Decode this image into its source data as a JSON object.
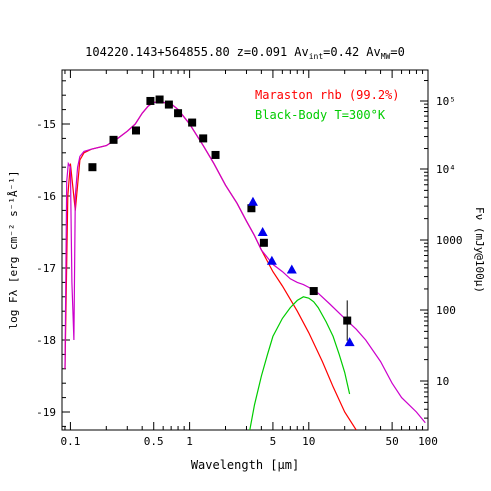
{
  "chart_data": {
    "type": "scatter",
    "title_parts": {
      "object": "104220.143+564855.80",
      "z_label": "z=0.091",
      "av_int_prefix": "Av",
      "av_int_sub": "int",
      "av_int_value": "=0.42",
      "av_mw_prefix": "Av",
      "av_mw_sub": "MW",
      "av_mw_value": "=0"
    },
    "xlabel": "Wavelength [μm]",
    "ylabel_left": "log Fλ [erg cm⁻² s⁻¹Å⁻¹]",
    "ylabel_right": "Fν (mJy@100μ)",
    "x_scale": "log",
    "xlim": [
      0.085,
      100
    ],
    "ylim": [
      -19.25,
      -14.25
    ],
    "x_ticks": [
      "0.1",
      "0.5",
      "1",
      "5",
      "10",
      "50",
      "100"
    ],
    "y_ticks": [
      "-15",
      "-16",
      "-17",
      "-18",
      "-19"
    ],
    "right_ticks": [
      "10⁵",
      "10⁴",
      "1000",
      "100",
      "10"
    ],
    "legend": [
      {
        "name": "Maraston rhb (99.2%)",
        "color": "#ff0000"
      },
      {
        "name": "Black-Body T=300°K",
        "color": "#00cc00"
      }
    ],
    "series": [
      {
        "name": "Maraston rhb (99.2%)",
        "kind": "line",
        "color": "#ff0000",
        "x": [
          0.09,
          0.095,
          0.1,
          0.11,
          0.12,
          0.13,
          0.15,
          0.2,
          0.25,
          0.3,
          0.35,
          0.4,
          0.45,
          0.5,
          0.6,
          0.7,
          0.8,
          1.0,
          1.3,
          1.6,
          2.0,
          2.5,
          3.0,
          3.5,
          4.0,
          5.0,
          6.0,
          8.0,
          10.0,
          13.0,
          16.0,
          20.0,
          25.0
        ],
        "y": [
          -18.4,
          -16.0,
          -15.55,
          -16.2,
          -15.5,
          -15.4,
          -15.35,
          -15.3,
          -15.2,
          -15.1,
          -15.0,
          -14.85,
          -14.75,
          -14.7,
          -14.7,
          -14.72,
          -14.8,
          -15.0,
          -15.3,
          -15.55,
          -15.85,
          -16.1,
          -16.35,
          -16.55,
          -16.75,
          -17.05,
          -17.25,
          -17.6,
          -17.9,
          -18.3,
          -18.65,
          -19.0,
          -19.25
        ]
      },
      {
        "name": "Black-Body T=300°K",
        "kind": "line",
        "color": "#00cc00",
        "x": [
          3.2,
          3.5,
          4.0,
          4.5,
          5.0,
          6.0,
          7.0,
          8.0,
          9.0,
          10.0,
          11.0,
          12.0,
          14.0,
          16.0,
          18.0,
          20.0,
          22.0
        ],
        "y": [
          -19.25,
          -18.9,
          -18.5,
          -18.2,
          -17.95,
          -17.7,
          -17.55,
          -17.45,
          -17.4,
          -17.42,
          -17.47,
          -17.55,
          -17.75,
          -17.95,
          -18.2,
          -18.45,
          -18.75
        ]
      },
      {
        "name": "total model",
        "kind": "line",
        "color": "#cc00cc",
        "x": [
          0.09,
          0.093,
          0.096,
          0.1,
          0.103,
          0.107,
          0.11,
          0.115,
          0.12,
          0.13,
          0.15,
          0.2,
          0.25,
          0.3,
          0.35,
          0.4,
          0.45,
          0.5,
          0.6,
          0.7,
          0.8,
          1.0,
          1.3,
          1.6,
          2.0,
          2.5,
          3.0,
          3.5,
          4.0,
          5.0,
          6.0,
          7.0,
          8.0,
          9.0,
          10.0,
          12.0,
          15.0,
          20.0,
          25.0,
          30.0,
          40.0,
          50.0,
          60.0,
          80.0,
          95.0
        ],
        "y": [
          -18.4,
          -15.8,
          -15.55,
          -15.6,
          -17.2,
          -18.0,
          -16.0,
          -15.6,
          -15.45,
          -15.38,
          -15.35,
          -15.3,
          -15.2,
          -15.1,
          -15.0,
          -14.85,
          -14.75,
          -14.7,
          -14.7,
          -14.72,
          -14.8,
          -15.0,
          -15.3,
          -15.55,
          -15.85,
          -16.1,
          -16.35,
          -16.55,
          -16.75,
          -16.95,
          -17.05,
          -17.15,
          -17.2,
          -17.23,
          -17.27,
          -17.35,
          -17.5,
          -17.7,
          -17.85,
          -18.0,
          -18.3,
          -18.6,
          -18.8,
          -19.0,
          -19.15
        ]
      },
      {
        "name": "photometry (squares)",
        "kind": "points",
        "marker": "square",
        "color": "#000000",
        "x": [
          0.153,
          0.23,
          0.355,
          0.469,
          0.56,
          0.67,
          0.8,
          1.05,
          1.3,
          1.65,
          3.3,
          4.2,
          11.0,
          21.0
        ],
        "y": [
          -15.6,
          -15.22,
          -15.09,
          -14.68,
          -14.66,
          -14.73,
          -14.85,
          -14.98,
          -15.2,
          -15.43,
          -16.17,
          -16.65,
          -17.32,
          -17.73
        ],
        "err": [
          0,
          0,
          0,
          0,
          0,
          0,
          0,
          0,
          0,
          0,
          0,
          0,
          0,
          0.28
        ]
      },
      {
        "name": "photometry (triangles)",
        "kind": "points",
        "marker": "triangle",
        "color": "#0000ee",
        "x": [
          3.4,
          4.1,
          4.9,
          7.2,
          22.0
        ],
        "y": [
          -16.08,
          -16.5,
          -16.9,
          -17.02,
          -18.03
        ]
      }
    ]
  }
}
